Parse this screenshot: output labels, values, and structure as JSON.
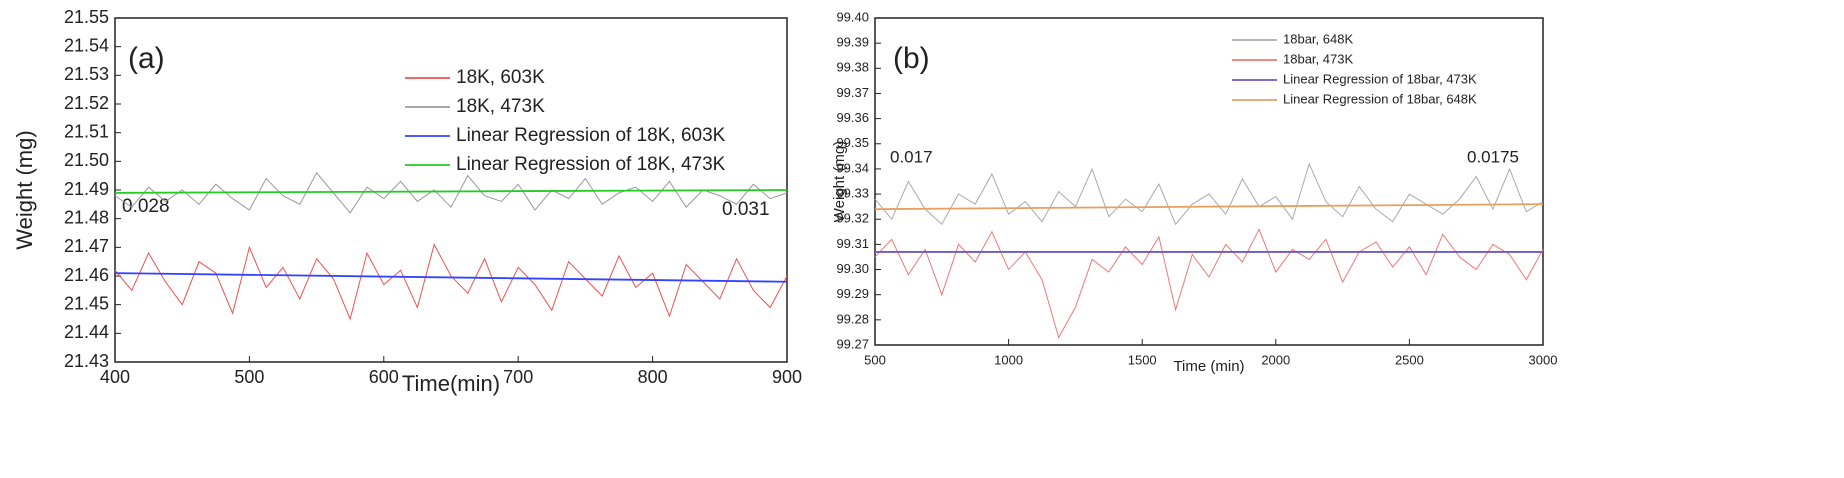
{
  "chart_data": [
    {
      "type": "line",
      "panel_label": "(a)",
      "y_label": "Weight (mg)",
      "x_label": "Time(min)",
      "annotations": [
        "0.028",
        "0.031"
      ],
      "legend": "top-right",
      "xlim": [
        400,
        900
      ],
      "xticks": [
        400,
        500,
        600,
        700,
        800,
        900
      ],
      "ylim": [
        21.43,
        21.55
      ],
      "yticks": [
        21.43,
        21.44,
        21.45,
        21.46,
        21.47,
        21.48,
        21.49,
        {
          "value": 21.5,
          "label": "21.50"
        },
        21.51,
        21.52,
        21.53,
        21.54,
        21.55
      ],
      "series": [
        {
          "name": "18K, 603K",
          "color": "#f05050",
          "x": [
            400,
            412.5,
            425,
            437.5,
            450,
            462.5,
            475,
            487.5,
            500,
            512.5,
            525,
            537.5,
            550,
            562.5,
            575,
            587.5,
            600,
            612.5,
            625,
            637.5,
            650,
            662.5,
            675,
            687.5,
            700,
            712.5,
            725,
            737.5,
            750,
            762.5,
            775,
            787.5,
            800,
            812.5,
            825,
            837.5,
            850,
            862.5,
            875,
            887.5,
            900
          ],
          "values": [
            21.462,
            21.455,
            21.468,
            21.458,
            21.45,
            21.465,
            21.461,
            21.447,
            21.47,
            21.456,
            21.463,
            21.452,
            21.466,
            21.459,
            21.445,
            21.468,
            21.457,
            21.462,
            21.449,
            21.471,
            21.46,
            21.454,
            21.466,
            21.451,
            21.463,
            21.457,
            21.448,
            21.465,
            21.459,
            21.453,
            21.467,
            21.456,
            21.461,
            21.446,
            21.464,
            21.458,
            21.452,
            21.466,
            21.455,
            21.449,
            21.46
          ]
        },
        {
          "name": "18K, 473K",
          "color": "#999999",
          "x": [
            400,
            412.5,
            425,
            437.5,
            450,
            462.5,
            475,
            487.5,
            500,
            512.5,
            525,
            537.5,
            550,
            562.5,
            575,
            587.5,
            600,
            612.5,
            625,
            637.5,
            650,
            662.5,
            675,
            687.5,
            700,
            712.5,
            725,
            737.5,
            750,
            762.5,
            775,
            787.5,
            800,
            812.5,
            825,
            837.5,
            850,
            862.5,
            875,
            887.5,
            900
          ],
          "values": [
            21.488,
            21.484,
            21.491,
            21.486,
            21.49,
            21.485,
            21.492,
            21.487,
            21.483,
            21.494,
            21.488,
            21.485,
            21.496,
            21.489,
            21.482,
            21.491,
            21.487,
            21.493,
            21.486,
            21.49,
            21.484,
            21.495,
            21.488,
            21.486,
            21.492,
            21.483,
            21.49,
            21.487,
            21.494,
            21.485,
            21.489,
            21.491,
            21.486,
            21.493,
            21.484,
            21.49,
            21.488,
            21.485,
            21.492,
            21.487,
            21.489
          ]
        },
        {
          "name": "Linear Regression of 18K, 603K",
          "color": "#3344ff",
          "x": [
            400,
            900
          ],
          "values": [
            21.461,
            21.458
          ]
        },
        {
          "name": "Linear Regression of 18K, 473K",
          "color": "#22cc22",
          "x": [
            400,
            900
          ],
          "values": [
            21.489,
            21.49
          ]
        }
      ]
    },
    {
      "type": "line",
      "panel_label": "(b)",
      "y_label": "Weight (mg)",
      "x_label": "Time (min)",
      "annotations": [
        "0.017",
        "0.0175"
      ],
      "legend": "top-right",
      "xlim": [
        500,
        3000
      ],
      "xticks": [
        500,
        1000,
        1500,
        2000,
        2500,
        3000
      ],
      "ylim": [
        99.27,
        99.4
      ],
      "yticks": [
        99.27,
        99.28,
        99.29,
        {
          "value": 99.3,
          "label": "99.30"
        },
        99.31,
        99.32,
        99.33,
        99.34,
        99.35,
        99.36,
        99.37,
        99.38,
        99.39,
        {
          "value": 99.4,
          "label": "99.40"
        }
      ],
      "series": [
        {
          "name": "18bar, 648K",
          "color": "#aaaaaa",
          "x": [
            500,
            562.5,
            625,
            687.5,
            750,
            812.5,
            875,
            937.5,
            1000,
            1062.5,
            1125,
            1187.5,
            1250,
            1312.5,
            1375,
            1437.5,
            1500,
            1562.5,
            1625,
            1687.5,
            1750,
            1812.5,
            1875,
            1937.5,
            2000,
            2062.5,
            2125,
            2187.5,
            2250,
            2312.5,
            2375,
            2437.5,
            2500,
            2562.5,
            2625,
            2687.5,
            2750,
            2812.5,
            2875,
            2937.5,
            3000
          ],
          "values": [
            99.328,
            99.32,
            99.335,
            99.324,
            99.318,
            99.33,
            99.326,
            99.338,
            99.322,
            99.327,
            99.319,
            99.331,
            99.325,
            99.34,
            99.321,
            99.328,
            99.323,
            99.334,
            99.318,
            99.326,
            99.33,
            99.322,
            99.336,
            99.325,
            99.329,
            99.32,
            99.342,
            99.327,
            99.321,
            99.333,
            99.324,
            99.319,
            99.33,
            99.326,
            99.322,
            99.328,
            99.337,
            99.324,
            99.34,
            99.323,
            99.327
          ]
        },
        {
          "name": "18bar, 473K",
          "color": "#f07878",
          "x": [
            500,
            562.5,
            625,
            687.5,
            750,
            812.5,
            875,
            937.5,
            1000,
            1062.5,
            1125,
            1187.5,
            1250,
            1312.5,
            1375,
            1437.5,
            1500,
            1562.5,
            1625,
            1687.5,
            1750,
            1812.5,
            1875,
            1937.5,
            2000,
            2062.5,
            2125,
            2187.5,
            2250,
            2312.5,
            2375,
            2437.5,
            2500,
            2562.5,
            2625,
            2687.5,
            2750,
            2812.5,
            2875,
            2937.5,
            3000
          ],
          "values": [
            99.305,
            99.312,
            99.298,
            99.308,
            99.29,
            99.31,
            99.303,
            99.315,
            99.3,
            99.307,
            99.296,
            99.273,
            99.285,
            99.304,
            99.299,
            99.309,
            99.302,
            99.313,
            99.284,
            99.306,
            99.297,
            99.31,
            99.303,
            99.316,
            99.299,
            99.308,
            99.304,
            99.312,
            99.295,
            99.307,
            99.311,
            99.301,
            99.309,
            99.298,
            99.314,
            99.305,
            99.3,
            99.31,
            99.306,
            99.296,
            99.308
          ]
        },
        {
          "name": "Linear Regression of 18bar, 473K",
          "color": "#6a5acd",
          "x": [
            500,
            3000
          ],
          "values": [
            99.307,
            99.307
          ]
        },
        {
          "name": "Linear Regression of 18bar, 648K",
          "color": "#e8a060",
          "x": [
            500,
            3000
          ],
          "values": [
            99.324,
            99.326
          ]
        }
      ]
    }
  ]
}
